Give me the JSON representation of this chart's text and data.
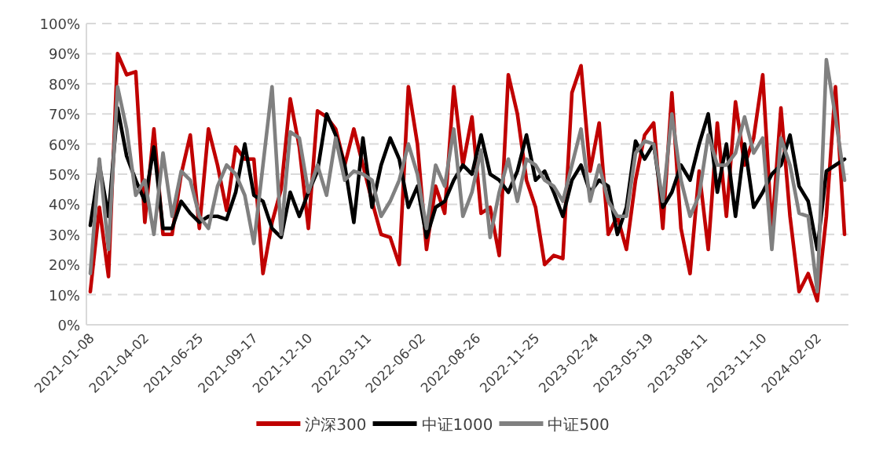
{
  "chart_data": {
    "type": "line",
    "x": [
      "2021-01-08",
      "2021-01-22",
      "2021-02-05",
      "2021-02-19",
      "2021-03-05",
      "2021-03-19",
      "2021-04-02",
      "2021-04-16",
      "2021-04-30",
      "2021-05-14",
      "2021-05-28",
      "2021-06-11",
      "2021-06-25",
      "2021-07-09",
      "2021-07-23",
      "2021-08-06",
      "2021-08-20",
      "2021-09-03",
      "2021-09-17",
      "2021-10-01",
      "2021-10-15",
      "2021-10-29",
      "2021-11-12",
      "2021-11-26",
      "2021-12-10",
      "2021-12-24",
      "2022-01-07",
      "2022-01-21",
      "2022-02-04",
      "2022-02-18",
      "2022-03-04",
      "2022-03-18",
      "2022-04-01",
      "2022-04-15",
      "2022-04-29",
      "2022-05-13",
      "2022-05-27",
      "2022-06-10",
      "2022-06-24",
      "2022-07-08",
      "2022-07-22",
      "2022-08-05",
      "2022-08-19",
      "2022-09-02",
      "2022-09-16",
      "2022-09-30",
      "2022-10-14",
      "2022-10-28",
      "2022-11-11",
      "2022-11-25",
      "2022-12-09",
      "2022-12-23",
      "2023-01-06",
      "2023-01-20",
      "2023-02-03",
      "2023-02-17",
      "2023-03-03",
      "2023-03-17",
      "2023-03-31",
      "2023-04-14",
      "2023-04-28",
      "2023-05-12",
      "2023-05-26",
      "2023-06-09",
      "2023-06-23",
      "2023-07-07",
      "2023-07-21",
      "2023-08-04",
      "2023-08-18",
      "2023-09-01",
      "2023-09-15",
      "2023-09-29",
      "2023-10-13",
      "2023-10-27",
      "2023-11-10",
      "2023-11-24",
      "2023-12-08",
      "2023-12-22",
      "2024-01-05",
      "2024-01-19",
      "2024-02-02",
      "2024-02-16",
      "2024-03-01",
      "2024-03-15"
    ],
    "series": [
      {
        "name": "沪深300",
        "color": "#c00000",
        "values": [
          11,
          39,
          16,
          90,
          83,
          84,
          34,
          65,
          30,
          30,
          50,
          63,
          32,
          65,
          53,
          38,
          59,
          55,
          55,
          17,
          34,
          45,
          75,
          59,
          32,
          71,
          69,
          65,
          53,
          65,
          53,
          41,
          30,
          29,
          20,
          79,
          60,
          25,
          46,
          37,
          79,
          53,
          69,
          37,
          39,
          23,
          83,
          70,
          48,
          39,
          20,
          23,
          22,
          77,
          86,
          51,
          67,
          30,
          36,
          25,
          48,
          63,
          67,
          32,
          77,
          32,
          17,
          51,
          25,
          67,
          36,
          74,
          53,
          62,
          83,
          31,
          72,
          36,
          11,
          17,
          8,
          36,
          79,
          30
        ]
      },
      {
        "name": "中证1000",
        "color": "#000000",
        "values": [
          33,
          53,
          36,
          72,
          56,
          48,
          41,
          59,
          32,
          32,
          41,
          37,
          34,
          36,
          36,
          35,
          44,
          60,
          43,
          41,
          32,
          29,
          44,
          36,
          44,
          51,
          70,
          63,
          53,
          34,
          62,
          39,
          53,
          62,
          55,
          39,
          46,
          29,
          39,
          41,
          48,
          53,
          50,
          63,
          50,
          48,
          44,
          51,
          63,
          48,
          51,
          44,
          36,
          48,
          53,
          44,
          48,
          46,
          30,
          39,
          61,
          55,
          60,
          39,
          44,
          53,
          48,
          60,
          70,
          44,
          60,
          36,
          60,
          39,
          44,
          50,
          53,
          63,
          46,
          41,
          25,
          51,
          53,
          55
        ]
      },
      {
        "name": "中证500",
        "color": "#808080",
        "values": [
          17,
          55,
          25,
          79,
          65,
          43,
          48,
          30,
          57,
          36,
          51,
          48,
          36,
          32,
          46,
          53,
          50,
          43,
          27,
          53,
          79,
          30,
          64,
          62,
          44,
          53,
          43,
          62,
          48,
          51,
          50,
          48,
          36,
          41,
          48,
          60,
          50,
          32,
          53,
          46,
          65,
          36,
          44,
          58,
          29,
          44,
          55,
          41,
          55,
          53,
          48,
          46,
          41,
          53,
          65,
          41,
          53,
          41,
          36,
          36,
          57,
          61,
          60,
          41,
          70,
          48,
          36,
          43,
          63,
          53,
          53,
          57,
          69,
          57,
          62,
          25,
          62,
          53,
          37,
          36,
          11,
          88,
          69,
          48
        ]
      }
    ],
    "xlim": [
      "2021-01-02",
      "2024-03-21"
    ],
    "xticks": [
      "2021-01-08",
      "2021-04-02",
      "2021-06-25",
      "2021-09-17",
      "2021-12-10",
      "2022-03-11",
      "2022-06-02",
      "2022-08-26",
      "2022-11-25",
      "2023-02-24",
      "2023-05-19",
      "2023-08-11",
      "2023-11-10",
      "2024-02-02"
    ],
    "ylim": [
      0,
      100
    ],
    "yticks": [
      {
        "value": 0,
        "label": "0%"
      },
      {
        "value": 10,
        "label": "10%"
      },
      {
        "value": 20,
        "label": "20%"
      },
      {
        "value": 30,
        "label": "30%"
      },
      {
        "value": 40,
        "label": "40%"
      },
      {
        "value": 50,
        "label": "50%"
      },
      {
        "value": 60,
        "label": "60%"
      },
      {
        "value": 70,
        "label": "70%"
      },
      {
        "value": 80,
        "label": "80%"
      },
      {
        "value": 90,
        "label": "90%"
      },
      {
        "value": 100,
        "label": "100%"
      }
    ],
    "grid": "y",
    "legend": "bottom",
    "marker": "none",
    "line_style": "solid"
  }
}
